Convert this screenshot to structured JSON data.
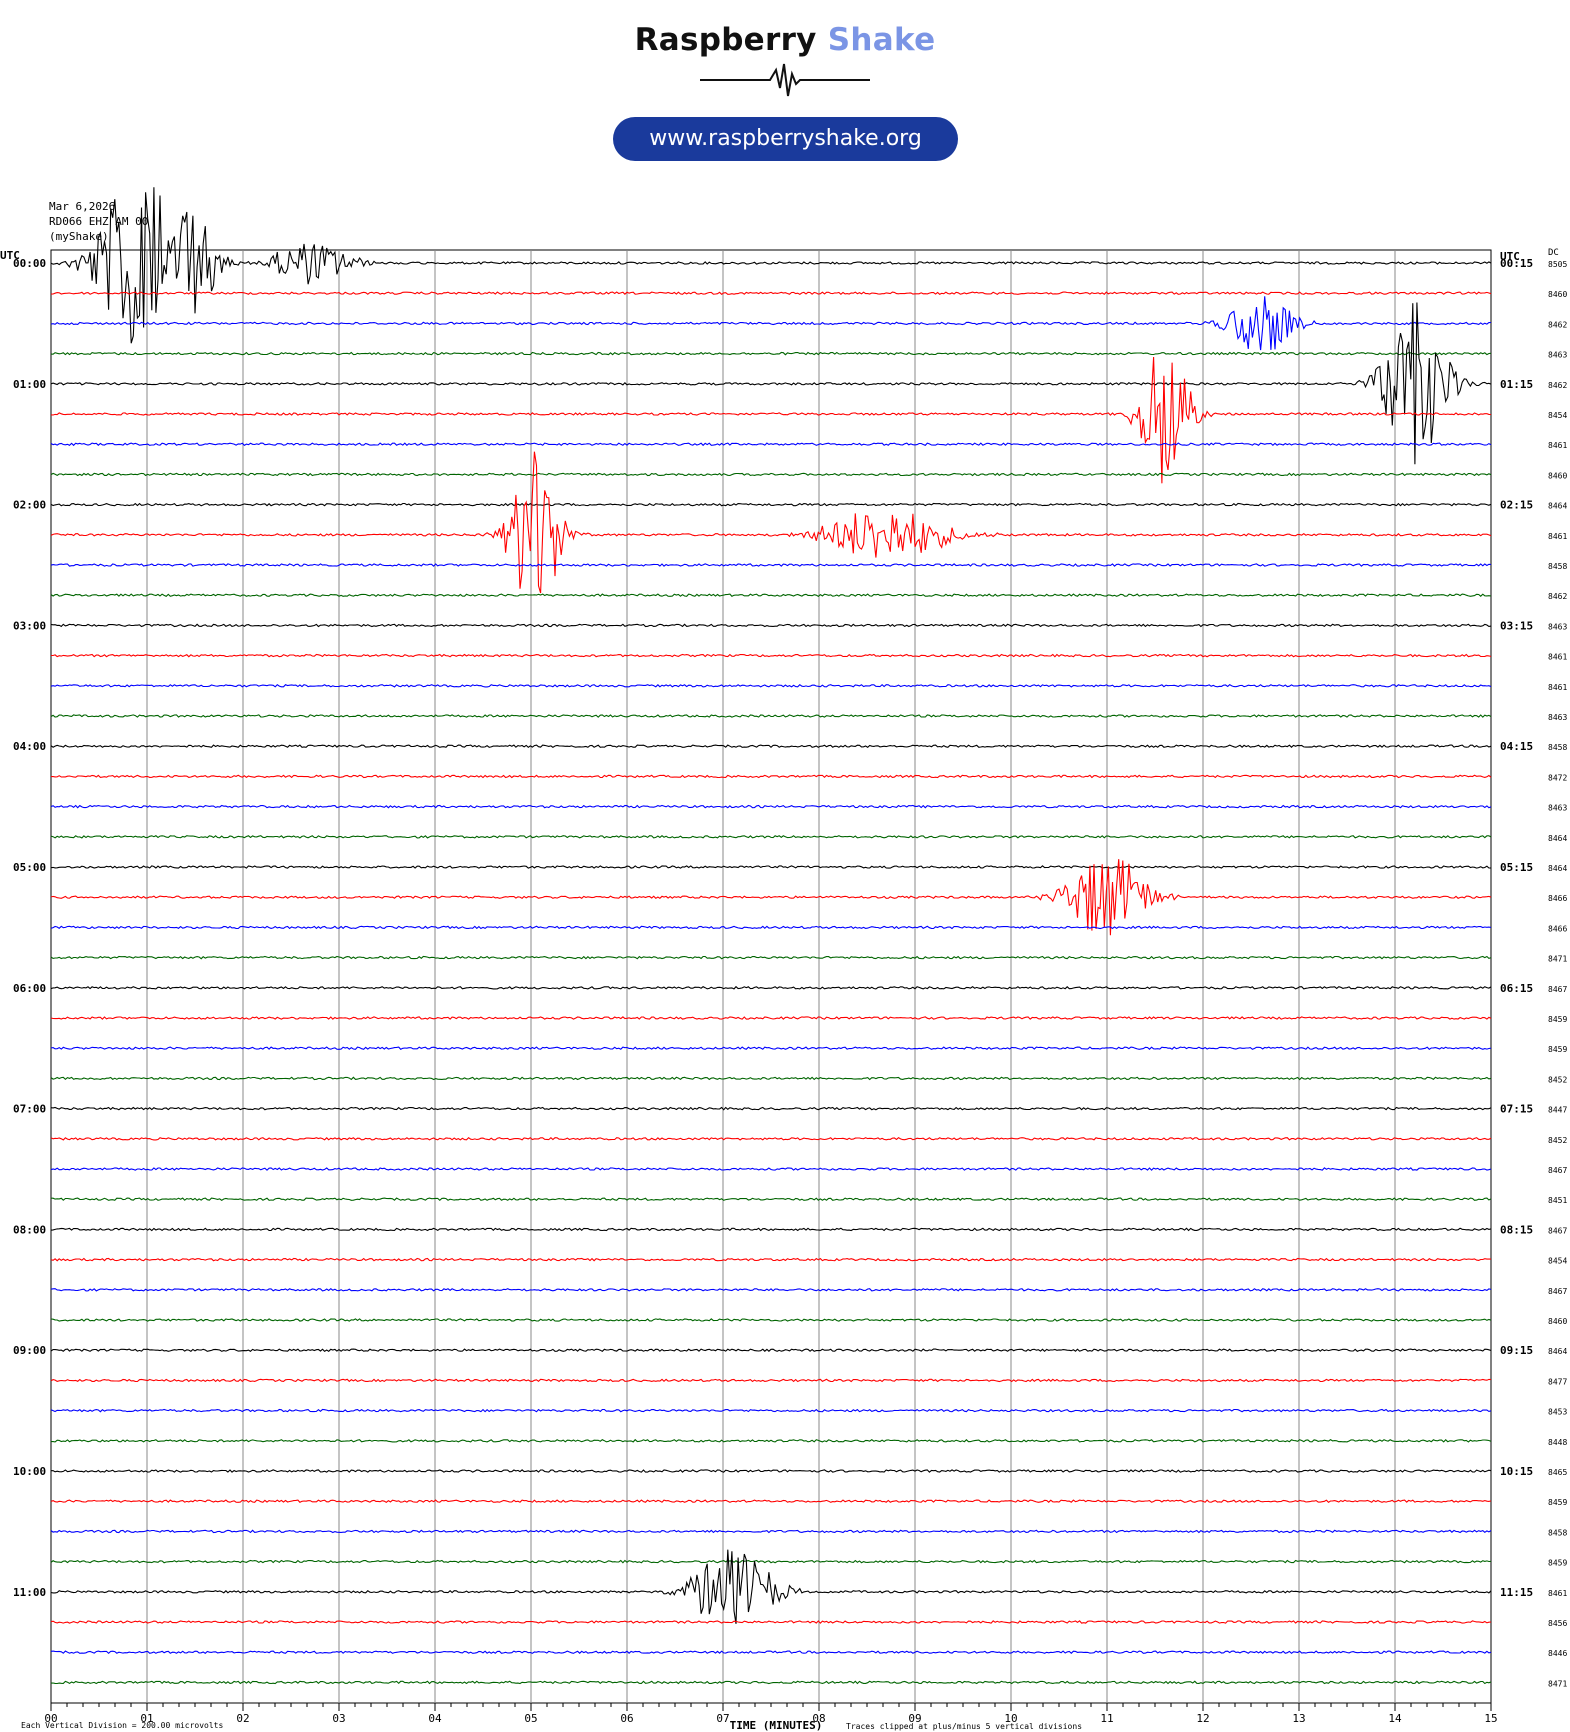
{
  "brand": {
    "name_part1": "Raspberry",
    "name_part2": "Shake",
    "url": "www.raspberryshake.org",
    "colors": {
      "dark": "#111111",
      "accent": "#7b95e5",
      "pill": "#1a3a9c"
    }
  },
  "header": {
    "date": "Mar 6,2026",
    "station": "RD066 EHZ AM 00",
    "app": "(myShake)"
  },
  "chart_data": {
    "type": "line",
    "subtype": "helicorder",
    "left_axis_label": "UTC",
    "right_axis_label": "UTC",
    "dc_label": "DC",
    "xlabel": "TIME (MINUTES)",
    "x_ticks": [
      "00",
      "01",
      "02",
      "03",
      "04",
      "05",
      "06",
      "07",
      "08",
      "09",
      "10",
      "11",
      "12",
      "13",
      "14",
      "15"
    ],
    "xlim": [
      0,
      15
    ],
    "trace_colors": [
      "#000000",
      "#ff0000",
      "#0000ff",
      "#006400"
    ],
    "left_times": [
      "00:00",
      "01:00",
      "02:00",
      "03:00",
      "04:00",
      "05:00",
      "06:00",
      "07:00",
      "08:00",
      "09:00",
      "10:00",
      "11:00"
    ],
    "right_times": [
      "00:15",
      "01:15",
      "02:15",
      "03:15",
      "04:15",
      "05:15",
      "06:15",
      "07:15",
      "08:15",
      "09:15",
      "10:15",
      "11:15"
    ],
    "dc_values": [
      "8505",
      "8460",
      "8462",
      "8463",
      "8462",
      "8454",
      "8461",
      "8460",
      "8464",
      "8461",
      "8458",
      "8462",
      "8463",
      "8461",
      "8461",
      "8463",
      "8458",
      "8472",
      "8463",
      "8464",
      "8464",
      "8466",
      "8466",
      "8471",
      "8467",
      "8459",
      "8459",
      "8452",
      "8447",
      "8452",
      "8467",
      "8451",
      "8467",
      "8454",
      "8467",
      "8460",
      "8464",
      "8477",
      "8453",
      "8448",
      "8465",
      "8459",
      "8458",
      "8459",
      "8461",
      "8456",
      "8446",
      "8471"
    ],
    "events": [
      {
        "row": 0,
        "minute": 0.9,
        "amp": 5,
        "dur": 1.0
      },
      {
        "row": 0,
        "minute": 1.5,
        "amp": 3,
        "dur": 0.6
      },
      {
        "row": 0,
        "minute": 2.7,
        "amp": 1.2,
        "dur": 1.0
      },
      {
        "row": 2,
        "minute": 12.6,
        "amp": 1.8,
        "dur": 0.8
      },
      {
        "row": 4,
        "minute": 14.2,
        "amp": 4.5,
        "dur": 0.8
      },
      {
        "row": 5,
        "minute": 11.6,
        "amp": 4.5,
        "dur": 0.6
      },
      {
        "row": 9,
        "minute": 5.05,
        "amp": 5,
        "dur": 0.6
      },
      {
        "row": 9,
        "minute": 8.7,
        "amp": 1.6,
        "dur": 1.5
      },
      {
        "row": 21,
        "minute": 11.0,
        "amp": 2.5,
        "dur": 1.0
      },
      {
        "row": 44,
        "minute": 7.1,
        "amp": 2.5,
        "dur": 1.0
      }
    ],
    "footer_left": "Each Vertical Division =  200.00 microvolts",
    "footer_right": "Traces clipped at plus/minus 5 vertical divisions"
  }
}
